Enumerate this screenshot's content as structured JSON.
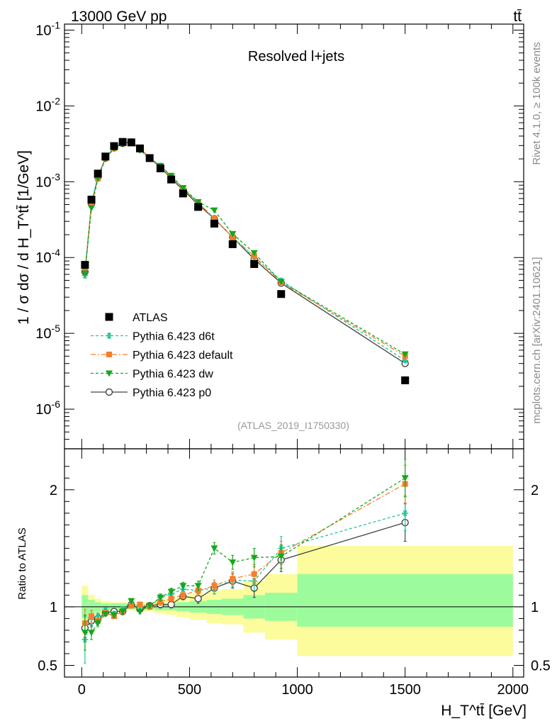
{
  "header": {
    "left_title": "13000 GeV pp",
    "right_title": "tt̄",
    "plot_title": "Resolved l+jets",
    "analysis_id": "(ATLAS_2019_I1750330)"
  },
  "side": {
    "rivet": "Rivet 4.1.0, ≥ 100k events",
    "site": "mcplots.cern.ch [arXiv:2401.10621]"
  },
  "chart_data": {
    "type": "scatter",
    "x": [
      15,
      45,
      75,
      110,
      150,
      190,
      230,
      270,
      315,
      365,
      415,
      470,
      540,
      615,
      700,
      800,
      925,
      1500
    ],
    "xlim": [
      -80,
      2050
    ],
    "xticks": [
      0,
      500,
      1000,
      1500,
      2000
    ],
    "xtick_labels": [
      "0",
      "500",
      "1000",
      "1500",
      "2000"
    ],
    "xlabel": "H_T^tt̄ [GeV]",
    "main": {
      "ylabel": "1 / σ dσ / d H_T^tt̄ [1/GeV]",
      "yscale": "log",
      "ylim": [
        3e-07,
        0.12
      ],
      "yticks": [
        1e-06,
        1e-05,
        0.0001,
        0.001,
        0.01,
        0.1
      ],
      "ytick_labels": [
        "10^-6",
        "10^-5",
        "10^-4",
        "10^-3",
        "10^-2",
        "10^-1"
      ]
    },
    "ratio": {
      "ylabel": "Ratio to ATLAS",
      "ylim": [
        0.4,
        2.35
      ],
      "yticks": [
        0.5,
        1,
        2
      ],
      "ytick_labels": [
        "0.5",
        "1",
        "2"
      ]
    },
    "series": [
      {
        "name": "ATLAS",
        "color": "#000000",
        "marker": "square",
        "dash": "none",
        "values": [
          8e-05,
          0.00058,
          0.00128,
          0.00215,
          0.00295,
          0.00335,
          0.0033,
          0.00275,
          0.00205,
          0.0015,
          0.00107,
          0.0007,
          0.000465,
          0.00028,
          0.00015,
          8.2e-05,
          3.3e-05,
          2.4e-06
        ]
      },
      {
        "name": "Pythia 6.423 d6t",
        "color": "#1fc59c",
        "marker": "star",
        "dash": "4,3",
        "values": [
          5.8e-05,
          0.00053,
          0.00118,
          0.00208,
          0.00278,
          0.0033,
          0.0034,
          0.00275,
          0.00205,
          0.00162,
          0.00119,
          0.00081,
          0.00053,
          0.000325,
          0.000185,
          0.0001,
          4.95e-05,
          4.4e-06
        ],
        "ratio": [
          0.72,
          0.91,
          0.92,
          0.97,
          0.94,
          0.98,
          1.03,
          1.0,
          1.0,
          1.08,
          1.11,
          1.15,
          1.14,
          1.16,
          1.23,
          1.22,
          1.5,
          1.8
        ],
        "ratio_err": [
          0.2,
          0.06,
          0.03,
          0.02,
          0.02,
          0.02,
          0.02,
          0.02,
          0.02,
          0.03,
          0.03,
          0.03,
          0.04,
          0.05,
          0.06,
          0.08,
          0.1,
          0.15
        ]
      },
      {
        "name": "Pythia 6.423 default",
        "color": "#f47f2c",
        "marker": "square",
        "dash": "7,3,2,3",
        "values": [
          6.8e-05,
          0.0005,
          0.0011,
          0.00205,
          0.00275,
          0.00322,
          0.00335,
          0.0028,
          0.00205,
          0.00155,
          0.00115,
          0.0008,
          0.00053,
          0.00033,
          0.000185,
          0.000105,
          4.7e-05,
          5e-06
        ],
        "ratio": [
          0.86,
          0.92,
          0.88,
          0.95,
          0.92,
          0.96,
          1.01,
          1.02,
          1.0,
          1.04,
          1.07,
          1.1,
          1.14,
          1.18,
          1.24,
          1.28,
          1.46,
          2.05
        ],
        "ratio_err": [
          0.12,
          0.05,
          0.03,
          0.02,
          0.02,
          0.02,
          0.02,
          0.02,
          0.02,
          0.03,
          0.03,
          0.03,
          0.04,
          0.05,
          0.06,
          0.08,
          0.1,
          0.16
        ]
      },
      {
        "name": "Pythia 6.423 dw",
        "color": "#14a81b",
        "marker": "tri",
        "dash": "4,3",
        "values": [
          6.2e-05,
          0.00045,
          0.0011,
          0.002,
          0.00275,
          0.0032,
          0.0034,
          0.0026,
          0.00205,
          0.00162,
          0.0012,
          0.00083,
          0.00054,
          0.00042,
          0.000205,
          0.000115,
          4.8e-05,
          5.3e-06
        ],
        "ratio": [
          0.78,
          0.78,
          0.86,
          0.94,
          0.93,
          0.96,
          1.05,
          0.96,
          1.01,
          1.08,
          1.13,
          1.18,
          1.18,
          1.5,
          1.38,
          1.42,
          1.43,
          2.1
        ],
        "ratio_err": [
          0.15,
          0.06,
          0.03,
          0.02,
          0.02,
          0.02,
          0.02,
          0.02,
          0.02,
          0.03,
          0.03,
          0.03,
          0.04,
          0.05,
          0.06,
          0.08,
          0.1,
          0.16
        ]
      },
      {
        "name": "Pythia 6.423 p0",
        "color": "#444444",
        "marker": "circle",
        "dash": "none",
        "values": [
          6.5e-05,
          0.00051,
          0.00115,
          0.00205,
          0.0028,
          0.0032,
          0.00335,
          0.0027,
          0.00205,
          0.00155,
          0.0011,
          0.00078,
          0.0005,
          0.000325,
          0.000185,
          9.5e-05,
          4.6e-05,
          4e-06
        ],
        "ratio": [
          0.82,
          0.88,
          0.9,
          0.95,
          0.96,
          0.96,
          1.02,
          0.98,
          1.01,
          1.02,
          1.02,
          1.09,
          1.07,
          1.16,
          1.22,
          1.16,
          1.4,
          1.72
        ],
        "ratio_err": [
          0.1,
          0.05,
          0.03,
          0.02,
          0.02,
          0.02,
          0.02,
          0.02,
          0.02,
          0.03,
          0.03,
          0.03,
          0.04,
          0.05,
          0.06,
          0.08,
          0.1,
          0.16
        ]
      }
    ],
    "uncertainty_bands": {
      "edges": [
        0,
        30,
        60,
        90,
        130,
        170,
        210,
        250,
        290,
        340,
        390,
        440,
        500,
        580,
        650,
        750,
        850,
        1000,
        2000
      ],
      "green_lo": [
        0.9,
        0.94,
        0.96,
        0.97,
        0.97,
        0.97,
        0.98,
        0.98,
        0.98,
        0.97,
        0.97,
        0.96,
        0.95,
        0.94,
        0.93,
        0.9,
        0.88,
        0.83
      ],
      "green_hi": [
        1.1,
        1.06,
        1.04,
        1.03,
        1.03,
        1.03,
        1.02,
        1.02,
        1.02,
        1.03,
        1.03,
        1.04,
        1.05,
        1.06,
        1.07,
        1.1,
        1.12,
        1.28
      ],
      "yellow_lo": [
        0.82,
        0.9,
        0.93,
        0.95,
        0.96,
        0.96,
        0.97,
        0.96,
        0.96,
        0.94,
        0.93,
        0.91,
        0.89,
        0.86,
        0.85,
        0.78,
        0.72,
        0.58
      ],
      "yellow_hi": [
        1.18,
        1.1,
        1.07,
        1.05,
        1.04,
        1.04,
        1.03,
        1.04,
        1.04,
        1.06,
        1.07,
        1.09,
        1.11,
        1.14,
        1.15,
        1.22,
        1.28,
        1.52
      ],
      "green_color": "#9cfc9c",
      "yellow_color": "#fcfc9c"
    }
  }
}
